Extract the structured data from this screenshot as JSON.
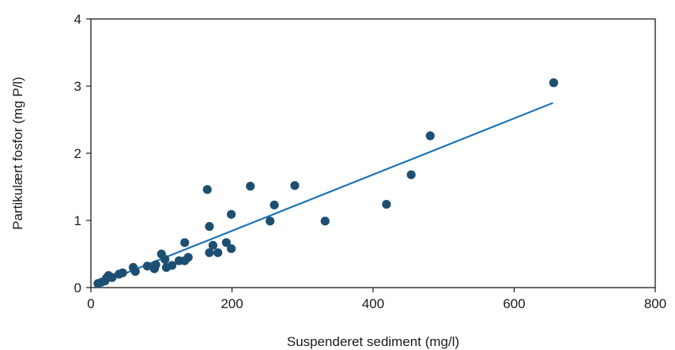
{
  "chart_data": {
    "type": "scatter",
    "title": "",
    "xlabel": "Suspenderet sediment (mg/l)",
    "ylabel": "Partikulært fosfor (mg P/l)",
    "xlim": [
      0,
      800
    ],
    "ylim": [
      0,
      4
    ],
    "xticks": [
      0,
      200,
      400,
      600,
      800
    ],
    "yticks": [
      0,
      1,
      2,
      3,
      4
    ],
    "grid": false,
    "legend": "none",
    "colors": {
      "points": "#1d4f72",
      "trendline": "#1e73b5",
      "axis": "#1a1a1a"
    },
    "series": [
      {
        "type": "scatter",
        "points": [
          [
            10,
            0.06
          ],
          [
            15,
            0.08
          ],
          [
            20,
            0.1
          ],
          [
            22,
            0.14
          ],
          [
            25,
            0.18
          ],
          [
            30,
            0.15
          ],
          [
            40,
            0.2
          ],
          [
            45,
            0.22
          ],
          [
            60,
            0.3
          ],
          [
            63,
            0.24
          ],
          [
            80,
            0.32
          ],
          [
            90,
            0.28
          ],
          [
            92,
            0.34
          ],
          [
            100,
            0.5
          ],
          [
            105,
            0.42
          ],
          [
            107,
            0.3
          ],
          [
            115,
            0.33
          ],
          [
            125,
            0.4
          ],
          [
            133,
            0.67
          ],
          [
            133,
            0.4
          ],
          [
            138,
            0.45
          ],
          [
            165,
            1.46
          ],
          [
            168,
            0.91
          ],
          [
            168,
            0.52
          ],
          [
            173,
            0.63
          ],
          [
            180,
            0.52
          ],
          [
            192,
            0.67
          ],
          [
            199,
            1.09
          ],
          [
            199,
            0.58
          ],
          [
            226,
            1.51
          ],
          [
            254,
            0.99
          ],
          [
            260,
            1.23
          ],
          [
            289,
            1.52
          ],
          [
            332,
            0.99
          ],
          [
            419,
            1.24
          ],
          [
            454,
            1.68
          ],
          [
            481,
            2.26
          ],
          [
            656,
            3.05
          ]
        ]
      },
      {
        "type": "line",
        "x": [
          10,
          655
        ],
        "y": [
          0.05,
          2.75
        ]
      }
    ]
  }
}
